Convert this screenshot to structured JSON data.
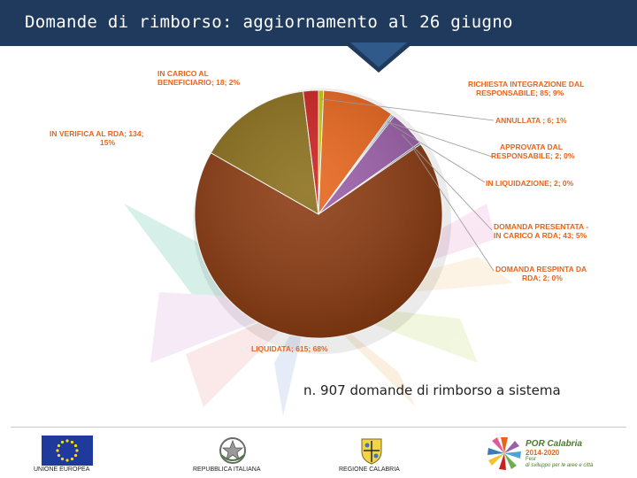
{
  "header": {
    "title": "Domande di rimborso: aggiornamento al 26 giugno",
    "background_color": "#1f3a5c"
  },
  "chart_data": {
    "type": "pie",
    "title": "",
    "unit": "domande di rimborso",
    "slices": [
      {
        "label": "ANNULLATA",
        "value": 6,
        "percent": "1%",
        "display": "ANNULLATA ; 6; 1%",
        "color": "#c8c800"
      },
      {
        "label": "RICHIESTA INTEGRAZIONE DAL RESPONSABILE",
        "value": 85,
        "percent": "9%",
        "display_lines": [
          "RICHIESTA INTEGRAZIONE DAL",
          "RESPONSABILE; 85; 9%"
        ],
        "color": "#e8641a"
      },
      {
        "label": "APPROVATA DAL RESPONSABILE",
        "value": 2,
        "percent": "0%",
        "display_lines": [
          "APPROVATA DAL",
          "RESPONSABILE; 2; 0%"
        ],
        "color": "#7ab3d9"
      },
      {
        "label": "IN LIQUIDAZIONE",
        "value": 2,
        "percent": "0%",
        "display": "IN LIQUIDAZIONE; 2; 0%",
        "color": "#4a6fa5"
      },
      {
        "label": "DOMANDA PRESENTATA - IN CARICO A RDA",
        "value": 43,
        "percent": "5%",
        "display_lines": [
          "DOMANDA PRESENTATA -",
          "IN CARICO A RDA; 43; 5%"
        ],
        "color": "#9b5ea8"
      },
      {
        "label": "DOMANDA RESPINTA DA RDA",
        "value": 2,
        "percent": "0%",
        "display_lines": [
          "DOMANDA RESPINTA DA",
          "RDA; 2; 0%"
        ],
        "color": "#2b4b8c"
      },
      {
        "label": "LIQUIDATA",
        "value": 615,
        "percent": "68%",
        "display": "LIQUIDATA; 615; 68%",
        "color": "#8b3a10"
      },
      {
        "label": "IN VERIFICA AL RDA",
        "value": 134,
        "percent": "15%",
        "display_lines": [
          "IN VERIFICA AL RDA; 134;",
          "15%"
        ],
        "color": "#8a6e1a"
      },
      {
        "label": "IN CARICO AL BENEFICIARIO",
        "value": 18,
        "percent": "2%",
        "display_lines": [
          "IN CARICO AL",
          "BENEFICIARIO; 18; 2%"
        ],
        "color": "#cc1f1f"
      }
    ],
    "start_angle_deg": 0,
    "direction": "clockwise",
    "label_color": "#e8641a"
  },
  "summary": "n. 907 domande di rimborso a sistema",
  "footer": {
    "logos": [
      {
        "name": "eu-flag-icon",
        "caption": "UNIONE EUROPEA"
      },
      {
        "name": "italian-emblem-icon",
        "caption": "REPUBBLICA ITALIANA"
      },
      {
        "name": "calabria-crest-icon",
        "caption": "REGIONE CALABRIA"
      }
    ],
    "por": {
      "name": "POR Calabria",
      "years": "2014-2020",
      "line1": "Fesr",
      "line2": "di sviluppo per le aree e città"
    }
  }
}
